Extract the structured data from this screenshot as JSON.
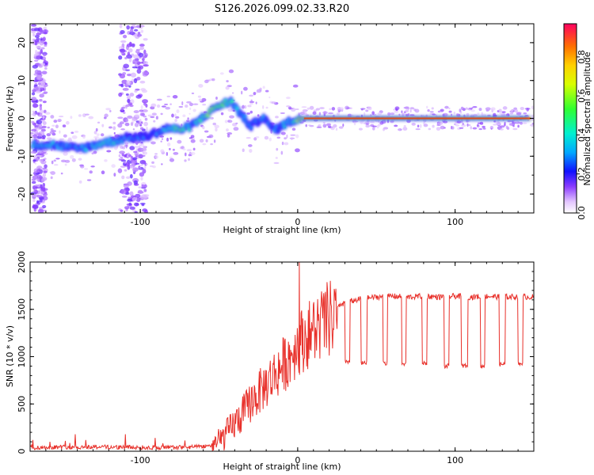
{
  "title": "S126.2026.099.02.33.R20",
  "colors": {
    "snr_line": "#e8302a",
    "ridge_main": "#d94b1e"
  },
  "chart_data": [
    {
      "type": "heatmap",
      "xlabel": "Height of straight line (km)",
      "ylabel": "Frequency (Hz)",
      "xlim": [
        -170,
        150
      ],
      "ylim": [
        -25,
        25
      ],
      "xticks": [
        -100,
        0,
        100
      ],
      "yticks": [
        20,
        10,
        0,
        -10,
        -20
      ],
      "colorbar": {
        "label": "Normalized spectral amplitude",
        "range": [
          0,
          0.97
        ],
        "ticks": [
          "0.0",
          "0.2",
          "0.4",
          "0.6",
          "0.8"
        ],
        "tick_values": [
          0.0,
          0.2,
          0.4,
          0.6,
          0.8
        ]
      },
      "ridge": {
        "x": [
          -155,
          -148,
          -140,
          -132,
          -124,
          -116,
          -108,
          -100,
          -94,
          -88,
          -82,
          -76,
          -70,
          -64,
          -58,
          -52,
          -46,
          -42,
          -38,
          -34,
          -30,
          -26,
          -22,
          -18,
          -14,
          -10,
          -6,
          -2,
          2,
          10,
          40,
          80,
          120,
          148
        ],
        "frequency": [
          -7,
          -7.5,
          -8,
          -7.5,
          -6.5,
          -6,
          -5,
          -5,
          -4.5,
          -3.5,
          -2.5,
          -3,
          -2.5,
          -1,
          1,
          3,
          4,
          4.5,
          2,
          0,
          -2,
          -1,
          0.5,
          -2,
          -3,
          -2,
          -1,
          -0.5,
          0,
          0,
          0,
          0,
          0,
          0
        ],
        "amplitude": [
          0.35,
          0.3,
          0.35,
          0.35,
          0.4,
          0.4,
          0.3,
          0.3,
          0.3,
          0.35,
          0.4,
          0.55,
          0.45,
          0.4,
          0.55,
          0.6,
          0.55,
          0.45,
          0.35,
          0.3,
          0.3,
          0.3,
          0.35,
          0.3,
          0.3,
          0.35,
          0.4,
          0.5,
          0.8,
          0.9,
          0.9,
          0.9,
          0.85,
          0.8
        ]
      },
      "noise_bands_x": [
        [
          -168,
          -160
        ],
        [
          -113,
          -96
        ]
      ]
    },
    {
      "type": "line",
      "xlabel": "Height of straight line (km)",
      "ylabel": "SNR (10 * v/v)",
      "xlim": [
        -170,
        150
      ],
      "ylim": [
        0,
        2000
      ],
      "xticks": [
        -100,
        0,
        100
      ],
      "yticks": [
        0,
        500,
        1000,
        1500,
        2000
      ],
      "series": [
        {
          "name": "SNR",
          "x": [
            -170,
            -160,
            -150,
            -140,
            -130,
            -120,
            -110,
            -100,
            -90,
            -80,
            -70,
            -60,
            -55,
            -50,
            -45,
            -40,
            -35,
            -30,
            -25,
            -20,
            -15,
            -10,
            -5,
            0,
            5,
            10,
            15,
            20,
            25,
            30,
            35,
            40,
            50,
            60,
            70,
            80,
            90,
            100,
            110,
            120,
            130,
            140,
            150
          ],
          "y": [
            30,
            35,
            45,
            40,
            50,
            45,
            40,
            35,
            30,
            35,
            40,
            55,
            80,
            130,
            220,
            330,
            430,
            560,
            660,
            760,
            860,
            960,
            1060,
            1200,
            1280,
            1350,
            1420,
            1470,
            1520,
            1560,
            1590,
            1610,
            1630,
            1640,
            1630,
            1640,
            1630,
            1640,
            1630,
            1640,
            1630,
            1635,
            1630
          ]
        }
      ],
      "dips": {
        "x_start": [
          30,
          40,
          54,
          66,
          79,
          93,
          104,
          116,
          128,
          140
        ],
        "x_end": [
          33,
          44,
          57,
          69,
          82,
          96,
          108,
          119,
          132,
          143
        ],
        "level": [
          950,
          930,
          930,
          920,
          930,
          900,
          900,
          900,
          920,
          920
        ]
      },
      "spike": {
        "x": 1,
        "y": 2000
      }
    }
  ]
}
